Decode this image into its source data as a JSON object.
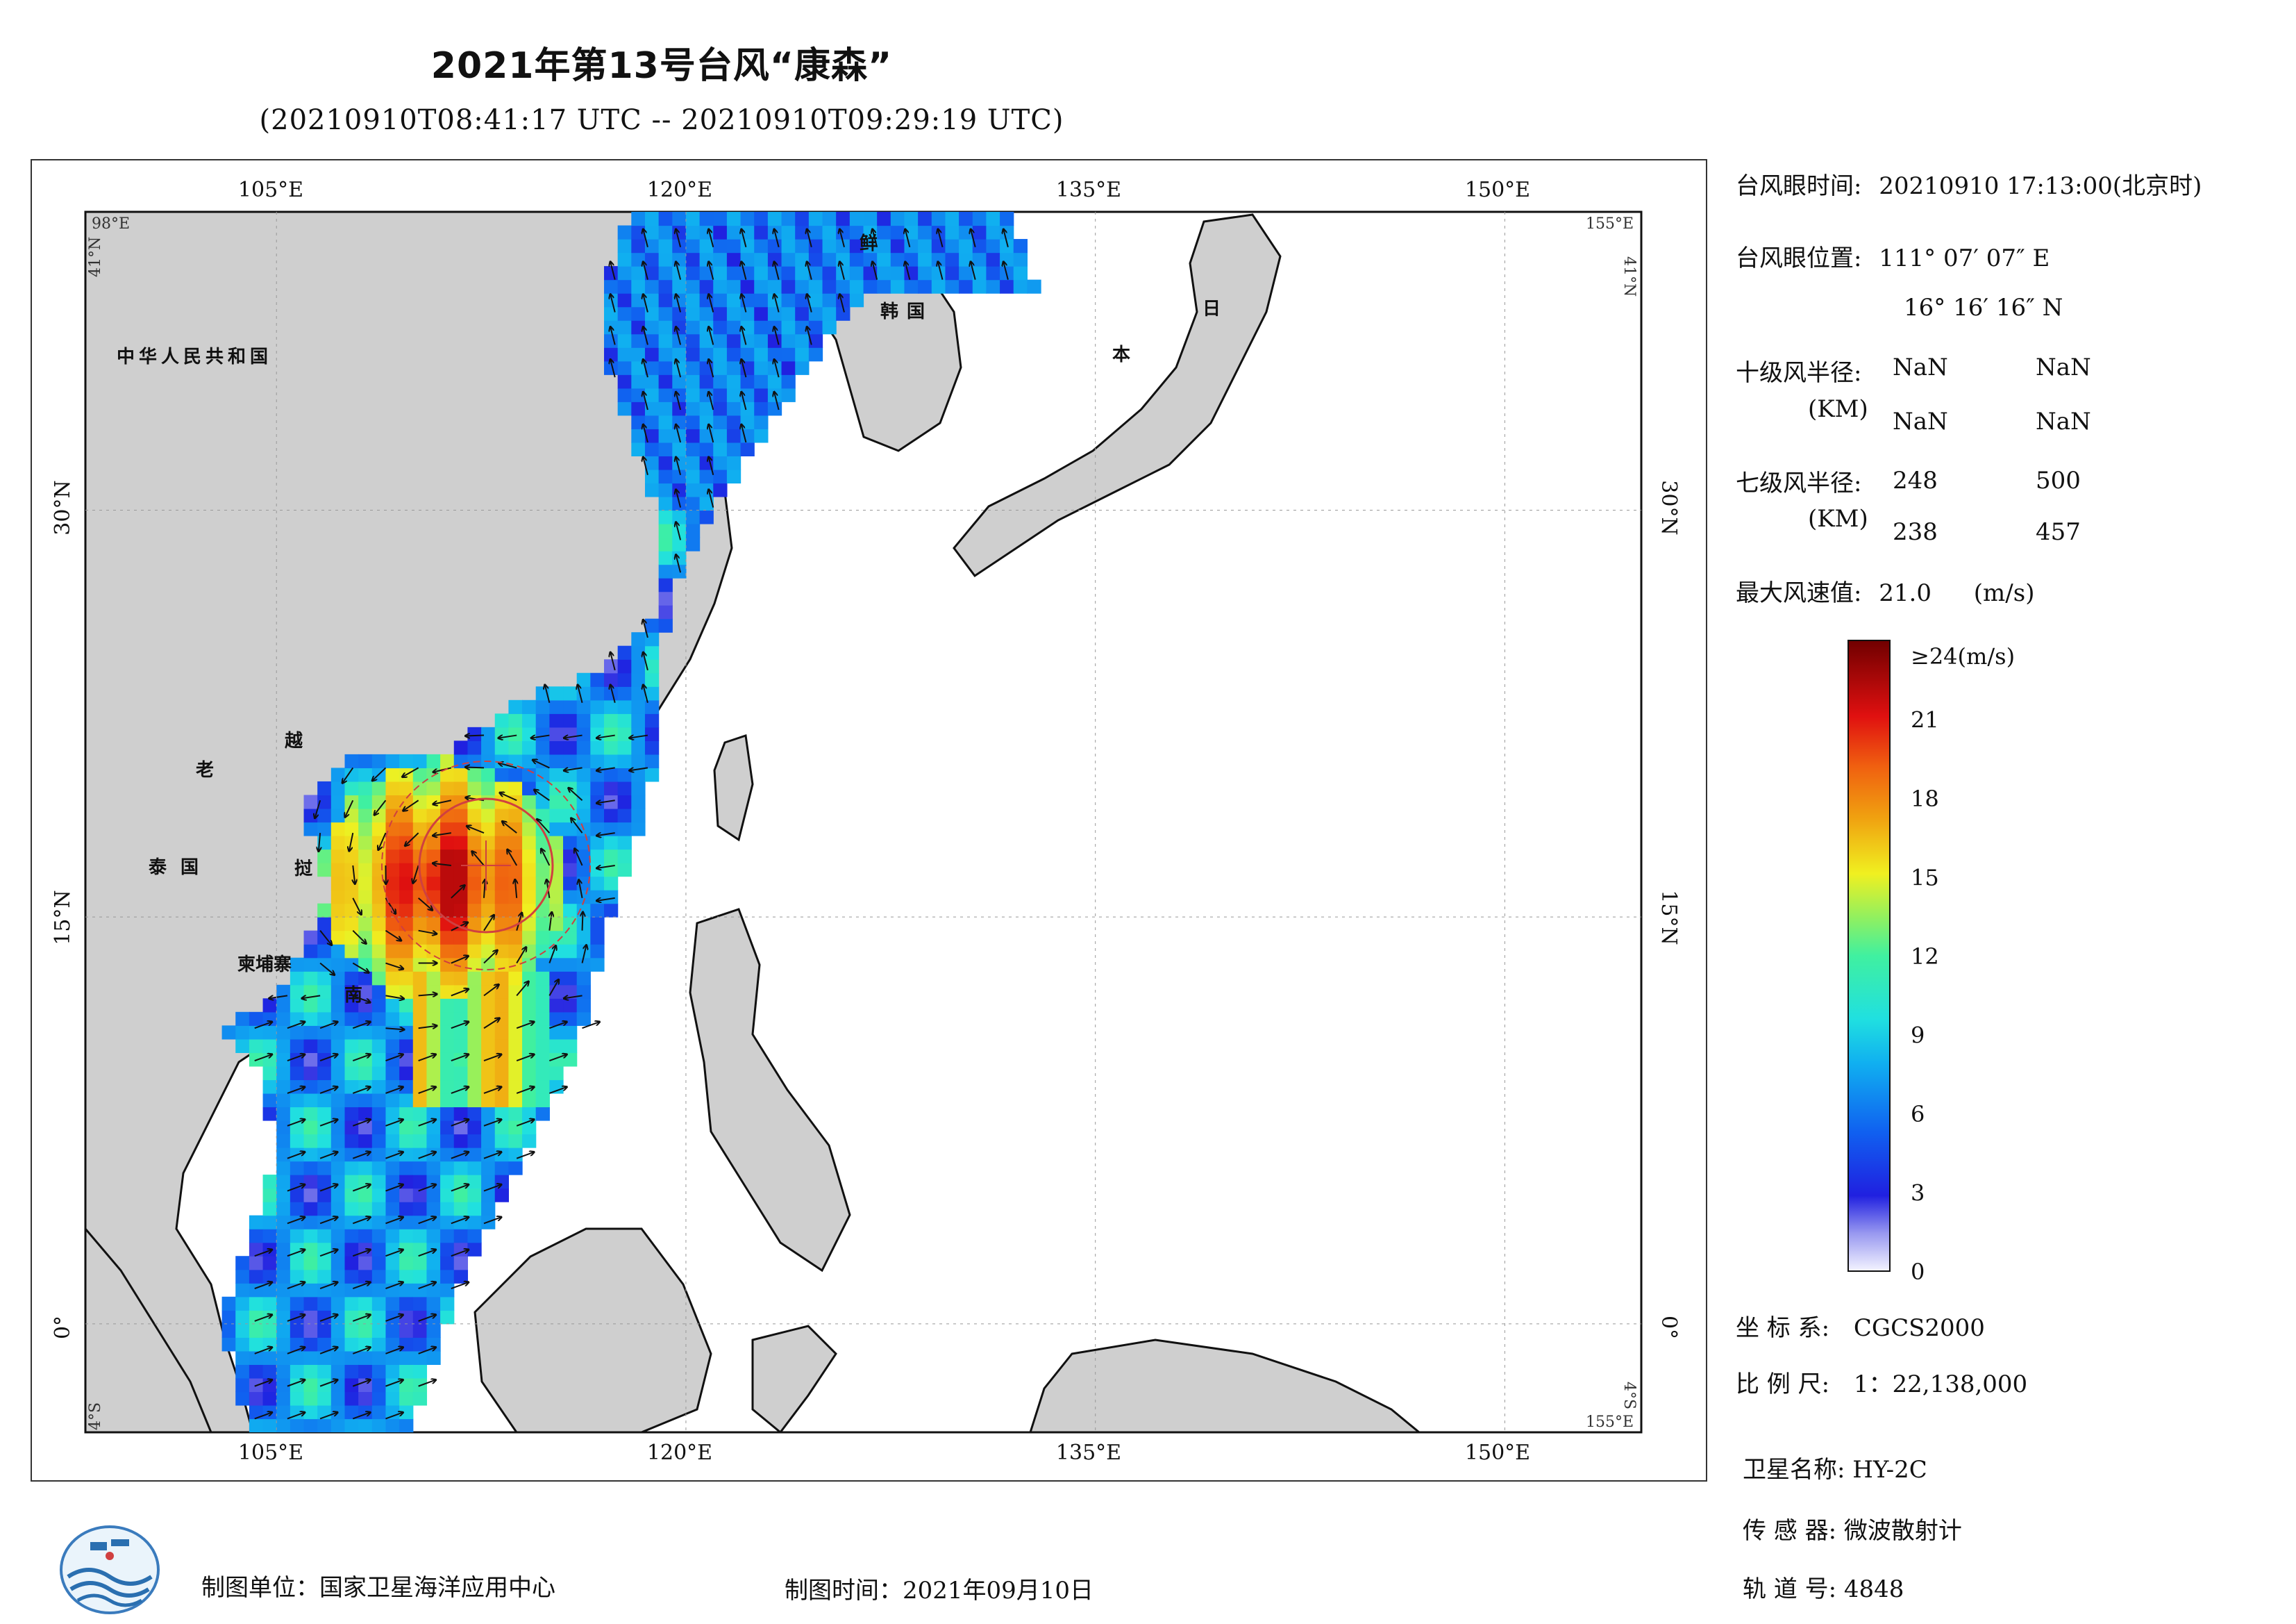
{
  "title": "2021年第13号台风“康森”",
  "subtitle": "(20210910T08:41:17 UTC -- 20210910T09:29:19 UTC)",
  "map": {
    "lon_labels_top": [
      "105°E",
      "120°E",
      "135°E",
      "150°E"
    ],
    "lon_labels_bottom": [
      "105°E",
      "120°E",
      "135°E",
      "150°E"
    ],
    "lat_labels_left": [
      "30°N",
      "15°N",
      "0°"
    ],
    "lat_labels_right": [
      "30°N",
      "15°N",
      "0°"
    ],
    "corner_labels": {
      "top_left_lon": "98°E",
      "top_left_lat": "41°N",
      "top_right_lon": "155°E",
      "top_right_lat": "41°N",
      "bottom_left_lat": "4°S",
      "bottom_right_lon": "155°E",
      "bottom_right_lat": "4°S"
    },
    "extent": {
      "lon_min": 98,
      "lon_max": 155,
      "lat_min": -4,
      "lat_max": 41
    },
    "country_labels": [
      "中华人民共和国",
      "老",
      "越",
      "泰国",
      "挝",
      "柬埔寨",
      "南",
      "鲜",
      "韩国",
      "日",
      "本"
    ],
    "colors": {
      "land": "#cfcfcf",
      "ocean": "#ffffff",
      "coast": "#111111",
      "eye_circle": "#d04040"
    }
  },
  "typhoon_info": {
    "eye_time_label": "台风眼时间:",
    "eye_time_value": "20210910 17:13:00(北京时)",
    "eye_pos_label": "台风眼位置:",
    "eye_lon": "111° 07′ 07″ E",
    "eye_lat": "16° 16′ 16″ N",
    "r10_label": "十级风半径:",
    "r10_unit": "(KM)",
    "r10_values": [
      "NaN",
      "NaN",
      "NaN",
      "NaN"
    ],
    "r7_label": "七级风半径:",
    "r7_unit": "(KM)",
    "r7_values": [
      "248",
      "500",
      "238",
      "457"
    ],
    "max_wind_label": "最大风速值:",
    "max_wind_value": "21.0",
    "max_wind_unit": "(m/s)"
  },
  "colorbar": {
    "top_label": "≥24(m/s)",
    "ticks": [
      "21",
      "18",
      "15",
      "12",
      "9",
      "6",
      "3",
      "0"
    ],
    "tick_values": [
      21,
      18,
      15,
      12,
      9,
      6,
      3,
      0
    ],
    "max": 24
  },
  "projection": {
    "coord_label": "坐 标 系:",
    "coord_value": "CGCS2000",
    "scale_label": "比 例 尺:",
    "scale_value": "1：22,138,000"
  },
  "satellite": {
    "name_label": "卫星名称:",
    "name_value": "HY-2C",
    "sensor_label": "传 感 器:",
    "sensor_value": "微波散射计",
    "orbit_label": "轨 道 号:",
    "orbit_value": "4848"
  },
  "footer": {
    "maker": "制图单位：国家卫星海洋应用中心",
    "date": "制图时间：2021年09月10日"
  }
}
